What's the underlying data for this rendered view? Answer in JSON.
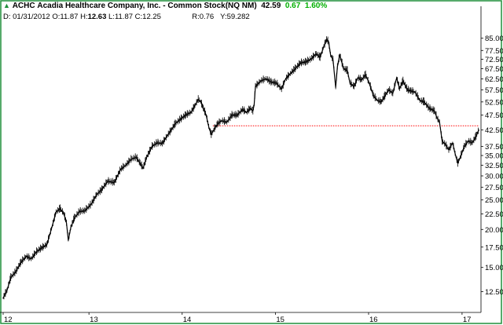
{
  "header": {
    "badge_glyph": "▲",
    "ticker": "ACHC",
    "company": "Acadia Healthcare Company, Inc. - Common Stock(NQ NM)",
    "last": "42.59",
    "change": "0.67",
    "change_pct": "1.60%",
    "date_label": "D:",
    "date": "01/31/2012",
    "open_label": "O:",
    "open": "11.87",
    "high_label": "H:",
    "high": "12.63",
    "low_label": "L:",
    "low": "11.87",
    "close_label": "C:",
    "close": "12.25",
    "r_label": "R:",
    "r_value": "0.76",
    "y_label": "Y:",
    "y_value": "59.282"
  },
  "colors": {
    "background": "#ffffff",
    "frame": "#1f8f3a",
    "price": "#000000",
    "grid": "#000000",
    "reference_line": "#ff0000",
    "positive": "#00b000"
  },
  "chart_data": {
    "type": "line",
    "title": "ACHC Acadia Healthcare Company, Inc. - Common Stock(NQ NM)",
    "xlabel": "",
    "ylabel": "",
    "y_scale": "log",
    "ylim": [
      10.8,
      95
    ],
    "xlim": [
      "2012-01-31",
      "2017-03-10"
    ],
    "grid": false,
    "legend": "none",
    "x_ticks": [
      {
        "label": "12",
        "date": "2012-01-01"
      },
      {
        "label": "13",
        "date": "2013-01-01"
      },
      {
        "label": "14",
        "date": "2014-01-01"
      },
      {
        "label": "15",
        "date": "2015-01-01"
      },
      {
        "label": "16",
        "date": "2016-01-01"
      },
      {
        "label": "17",
        "date": "2017-01-01"
      }
    ],
    "y_ticks": [
      {
        "label": "12.50",
        "value": 12.5
      },
      {
        "label": "15.00",
        "value": 15
      },
      {
        "label": "17.50",
        "value": 17.5
      },
      {
        "label": "20.00",
        "value": 20
      },
      {
        "label": "22.50",
        "value": 22.5
      },
      {
        "label": "25.00",
        "value": 25
      },
      {
        "label": "27.50",
        "value": 27.5
      },
      {
        "label": "30.00",
        "value": 30
      },
      {
        "label": "32.50",
        "value": 32.5
      },
      {
        "label": "35.00",
        "value": 35
      },
      {
        "label": "37.50",
        "value": 37.5
      },
      {
        "label": "42.50",
        "value": 42.5
      },
      {
        "label": "47.50",
        "value": 47.5
      },
      {
        "label": "52.50",
        "value": 52.5
      },
      {
        "label": "57.50",
        "value": 57.5
      },
      {
        "label": "62.50",
        "value": 62.5
      },
      {
        "label": "67.50",
        "value": 67.5
      },
      {
        "label": "72.50",
        "value": 72.5
      },
      {
        "label": "77.50",
        "value": 77.5
      },
      {
        "label": "85.00",
        "value": 85
      }
    ],
    "reference_line": {
      "value": 43.8,
      "style": "dotted",
      "from": "2014-05-01"
    },
    "series": [
      {
        "points": [
          [
            "2012-01-31",
            11.9
          ],
          [
            "2012-02-15",
            12.6
          ],
          [
            "2012-03-01",
            13.9
          ],
          [
            "2012-03-20",
            14.5
          ],
          [
            "2012-04-10",
            15.6
          ],
          [
            "2012-05-01",
            16.3
          ],
          [
            "2012-05-20",
            16.0
          ],
          [
            "2012-06-10",
            16.9
          ],
          [
            "2012-07-01",
            17.4
          ],
          [
            "2012-07-20",
            17.8
          ],
          [
            "2012-08-10",
            20.5
          ],
          [
            "2012-08-25",
            22.8
          ],
          [
            "2012-09-10",
            23.4
          ],
          [
            "2012-09-25",
            22.5
          ],
          [
            "2012-10-05",
            21.0
          ],
          [
            "2012-10-12",
            18.4
          ],
          [
            "2012-10-22",
            20.3
          ],
          [
            "2012-11-05",
            21.8
          ],
          [
            "2012-11-25",
            22.9
          ],
          [
            "2012-12-15",
            23.0
          ],
          [
            "2013-01-10",
            24.2
          ],
          [
            "2013-01-31",
            26.0
          ],
          [
            "2013-02-20",
            27.0
          ],
          [
            "2013-03-15",
            28.8
          ],
          [
            "2013-04-10",
            28.5
          ],
          [
            "2013-05-05",
            31.5
          ],
          [
            "2013-05-25",
            32.5
          ],
          [
            "2013-06-15",
            34.0
          ],
          [
            "2013-07-05",
            34.5
          ],
          [
            "2013-07-20",
            33.0
          ],
          [
            "2013-08-01",
            31.8
          ],
          [
            "2013-08-15",
            34.5
          ],
          [
            "2013-09-05",
            37.5
          ],
          [
            "2013-09-25",
            38.5
          ],
          [
            "2013-10-15",
            38.3
          ],
          [
            "2013-11-05",
            40.8
          ],
          [
            "2013-11-20",
            42.5
          ],
          [
            "2013-12-05",
            44.5
          ],
          [
            "2013-12-25",
            46.0
          ],
          [
            "2014-01-15",
            47.5
          ],
          [
            "2014-02-05",
            48.5
          ],
          [
            "2014-02-20",
            51.0
          ],
          [
            "2014-03-05",
            53.5
          ],
          [
            "2014-03-15",
            52.5
          ],
          [
            "2014-03-25",
            50.0
          ],
          [
            "2014-04-05",
            47.5
          ],
          [
            "2014-04-15",
            43.5
          ],
          [
            "2014-04-25",
            41.0
          ],
          [
            "2014-05-05",
            42.5
          ],
          [
            "2014-05-20",
            44.5
          ],
          [
            "2014-06-05",
            45.5
          ],
          [
            "2014-06-25",
            45.0
          ],
          [
            "2014-07-15",
            47.5
          ],
          [
            "2014-08-05",
            47.5
          ],
          [
            "2014-08-25",
            49.5
          ],
          [
            "2014-09-10",
            48.5
          ],
          [
            "2014-09-25",
            50.0
          ],
          [
            "2014-10-05",
            49.0
          ],
          [
            "2014-10-10",
            51.5
          ],
          [
            "2014-10-15",
            59.0
          ],
          [
            "2014-11-05",
            61.5
          ],
          [
            "2014-11-25",
            62.5
          ],
          [
            "2014-12-15",
            61.0
          ],
          [
            "2015-01-05",
            60.5
          ],
          [
            "2015-01-25",
            57.8
          ],
          [
            "2015-02-10",
            62.5
          ],
          [
            "2015-03-01",
            65.0
          ],
          [
            "2015-03-20",
            67.5
          ],
          [
            "2015-04-10",
            70.5
          ],
          [
            "2015-05-01",
            71.0
          ],
          [
            "2015-05-20",
            72.5
          ],
          [
            "2015-06-10",
            75.5
          ],
          [
            "2015-06-25",
            73.5
          ],
          [
            "2015-07-10",
            80.0
          ],
          [
            "2015-07-20",
            84.0
          ],
          [
            "2015-07-28",
            83.0
          ],
          [
            "2015-08-05",
            75.0
          ],
          [
            "2015-08-15",
            72.0
          ],
          [
            "2015-08-25",
            58.5
          ],
          [
            "2015-09-01",
            68.5
          ],
          [
            "2015-09-10",
            75.0
          ],
          [
            "2015-09-25",
            67.5
          ],
          [
            "2015-10-10",
            66.5
          ],
          [
            "2015-10-20",
            60.5
          ],
          [
            "2015-11-05",
            59.0
          ],
          [
            "2015-11-20",
            63.0
          ],
          [
            "2015-12-05",
            62.0
          ],
          [
            "2015-12-20",
            64.5
          ],
          [
            "2016-01-05",
            60.0
          ],
          [
            "2016-01-20",
            55.0
          ],
          [
            "2016-02-05",
            53.0
          ],
          [
            "2016-02-20",
            52.5
          ],
          [
            "2016-03-05",
            55.0
          ],
          [
            "2016-03-20",
            57.5
          ],
          [
            "2016-04-05",
            56.0
          ],
          [
            "2016-04-20",
            63.0
          ],
          [
            "2016-05-01",
            58.0
          ],
          [
            "2016-05-15",
            61.5
          ],
          [
            "2016-06-01",
            57.5
          ],
          [
            "2016-06-15",
            57.0
          ],
          [
            "2016-07-01",
            56.5
          ],
          [
            "2016-07-20",
            53.0
          ],
          [
            "2016-08-05",
            52.5
          ],
          [
            "2016-08-25",
            50.0
          ],
          [
            "2016-09-15",
            49.0
          ],
          [
            "2016-09-25",
            46.5
          ],
          [
            "2016-10-05",
            45.0
          ],
          [
            "2016-10-15",
            39.0
          ],
          [
            "2016-10-28",
            38.0
          ],
          [
            "2016-11-10",
            36.5
          ],
          [
            "2016-11-25",
            38.5
          ],
          [
            "2016-12-05",
            35.5
          ],
          [
            "2016-12-15",
            33.0
          ],
          [
            "2016-12-25",
            34.5
          ],
          [
            "2017-01-10",
            37.5
          ],
          [
            "2017-01-25",
            39.0
          ],
          [
            "2017-02-10",
            38.5
          ],
          [
            "2017-02-25",
            40.5
          ],
          [
            "2017-03-08",
            42.6
          ]
        ]
      }
    ]
  }
}
